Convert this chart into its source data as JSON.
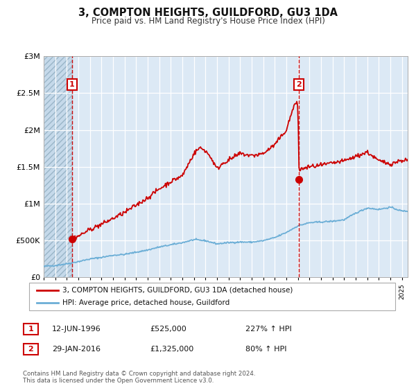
{
  "title": "3, COMPTON HEIGHTS, GUILDFORD, GU3 1DA",
  "subtitle": "Price paid vs. HM Land Registry's House Price Index (HPI)",
  "legend_line1": "3, COMPTON HEIGHTS, GUILDFORD, GU3 1DA (detached house)",
  "legend_line2": "HPI: Average price, detached house, Guildford",
  "annotation1_date": "12-JUN-1996",
  "annotation1_price": "£525,000",
  "annotation1_hpi": "227% ↑ HPI",
  "annotation2_date": "29-JAN-2016",
  "annotation2_price": "£1,325,000",
  "annotation2_hpi": "80% ↑ HPI",
  "footer1": "Contains HM Land Registry data © Crown copyright and database right 2024.",
  "footer2": "This data is licensed under the Open Government Licence v3.0.",
  "hpi_color": "#6baed6",
  "price_color": "#cc0000",
  "vline_color": "#cc0000",
  "bg_color": "#dce9f5",
  "ylim": [
    0,
    3000000
  ],
  "xlim_start": 1994.0,
  "xlim_end": 2025.5,
  "marker1_x": 1996.45,
  "marker1_y": 525000,
  "marker2_x": 2016.08,
  "marker2_y": 1325000,
  "vline1_x": 1996.45,
  "vline2_x": 2016.08,
  "hpi_nodes_x": [
    1994,
    1995,
    1996,
    1997,
    1998,
    1999,
    2000,
    2001,
    2002,
    2003,
    2004,
    2005,
    2006,
    2007,
    2008,
    2009,
    2010,
    2011,
    2012,
    2013,
    2014,
    2015,
    2016,
    2017,
    2018,
    2019,
    2020,
    2021,
    2022,
    2023,
    2024,
    2025
  ],
  "hpi_nodes_y": [
    150000,
    162000,
    185000,
    215000,
    250000,
    272000,
    300000,
    312000,
    342000,
    372000,
    412000,
    442000,
    472000,
    512000,
    498000,
    455000,
    472000,
    480000,
    478000,
    498000,
    540000,
    610000,
    700000,
    742000,
    752000,
    762000,
    782000,
    872000,
    942000,
    922000,
    952000,
    900000
  ],
  "price_nodes_x": [
    1996.45,
    1997,
    1998,
    1999,
    2000,
    2001,
    2002,
    2003,
    2004,
    2005,
    2006,
    2007,
    2007.5,
    2008,
    2008.5,
    2009,
    2009.5,
    2010,
    2011,
    2012,
    2013,
    2014,
    2015,
    2015.3,
    2015.7,
    2016.0,
    2016.1,
    2016.5,
    2017,
    2018,
    2019,
    2020,
    2021,
    2022,
    2023,
    2024,
    2025
  ],
  "price_nodes_y": [
    525000,
    560000,
    650000,
    720000,
    800000,
    880000,
    980000,
    1080000,
    1200000,
    1300000,
    1380000,
    1680000,
    1760000,
    1720000,
    1620000,
    1470000,
    1550000,
    1590000,
    1680000,
    1650000,
    1680000,
    1800000,
    2000000,
    2150000,
    2350000,
    2350000,
    1450000,
    1480000,
    1500000,
    1520000,
    1550000,
    1580000,
    1640000,
    1700000,
    1580000,
    1540000,
    1590000
  ]
}
